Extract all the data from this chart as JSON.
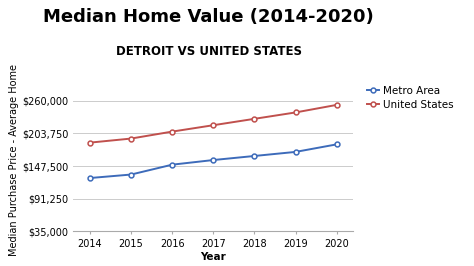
{
  "title": "Median Home Value (2014-2020)",
  "subtitle": "DETROIT VS UNITED STATES",
  "xlabel": "Year",
  "ylabel": "Median Purchase Price - Average Home",
  "years": [
    2014,
    2015,
    2016,
    2017,
    2018,
    2019,
    2020
  ],
  "metro_values": [
    127000,
    133000,
    150000,
    158000,
    165000,
    172000,
    185000
  ],
  "us_values": [
    188000,
    195000,
    207000,
    218000,
    229000,
    240000,
    253000
  ],
  "ylim": [
    35000,
    282500
  ],
  "yticks": [
    35000,
    91250,
    147500,
    203750,
    260000
  ],
  "ytick_labels": [
    "$35,000",
    "$91,250",
    "$147,500",
    "$203,750",
    "$260,000"
  ],
  "metro_color": "#3d6bba",
  "us_color": "#c0504d",
  "background_color": "#FFFFFF",
  "plot_bg_color": "#FFFFFF",
  "grid_color": "#CCCCCC",
  "legend_metro": "Metro Area",
  "legend_us": "United States",
  "title_fontsize": 13,
  "subtitle_fontsize": 8.5,
  "axis_label_fontsize": 7.5,
  "tick_fontsize": 7,
  "legend_fontsize": 7.5
}
